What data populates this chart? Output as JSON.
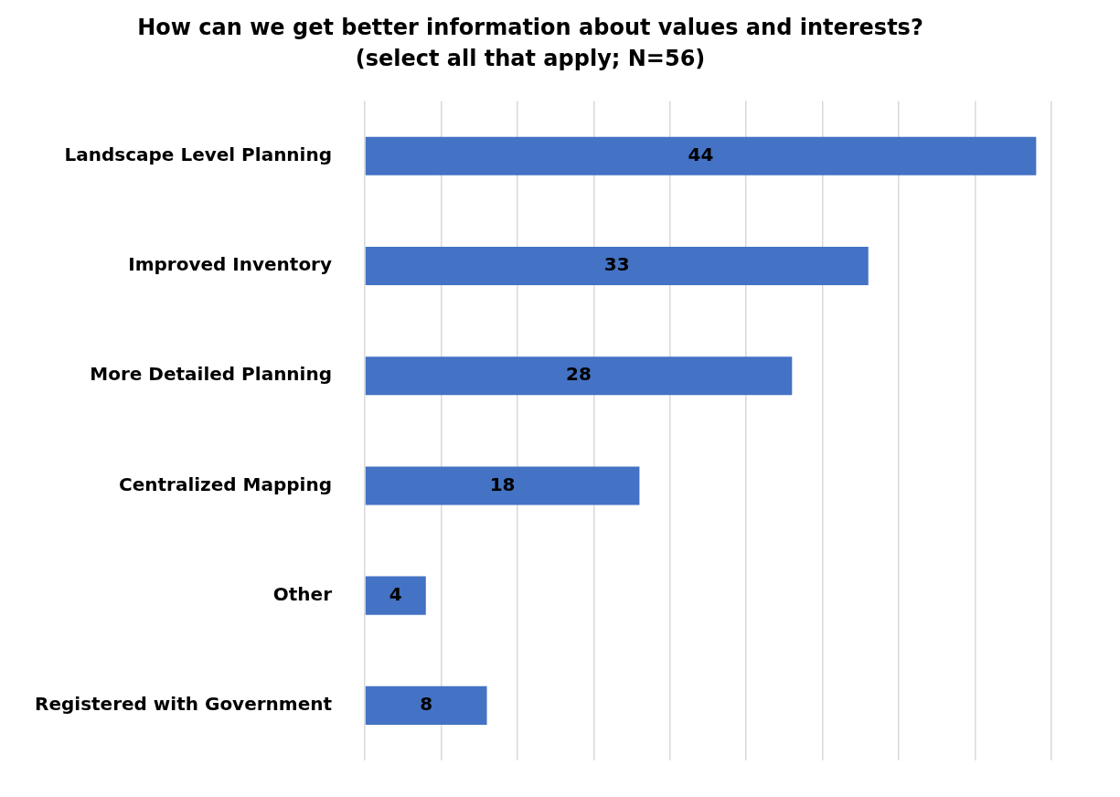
{
  "chart_data": {
    "type": "bar",
    "orientation": "horizontal",
    "title": "How can we get better information about values and interests?",
    "subtitle": "(select all that apply; N=56)",
    "categories": [
      "Landscape Level Planning",
      "Improved Inventory",
      "More Detailed Planning",
      "Centralized Mapping",
      "Other",
      "Registered with Government"
    ],
    "values": [
      44,
      33,
      28,
      18,
      4,
      8
    ],
    "color": "#4472c4",
    "xlim": [
      0,
      45
    ],
    "xticks": [
      {
        "value": 0,
        "label": null
      },
      {
        "value": 5,
        "label": null
      },
      {
        "value": 10,
        "label": null
      },
      {
        "value": 15,
        "label": null
      },
      {
        "value": 20,
        "label": null
      },
      {
        "value": 25,
        "label": null
      },
      {
        "value": 30,
        "label": null
      },
      {
        "value": 35,
        "label": null
      },
      {
        "value": 40,
        "label": null
      },
      {
        "value": 45,
        "label": null
      }
    ],
    "tick_labels": "y",
    "grid": "x",
    "legend": false,
    "data_labels": true
  }
}
